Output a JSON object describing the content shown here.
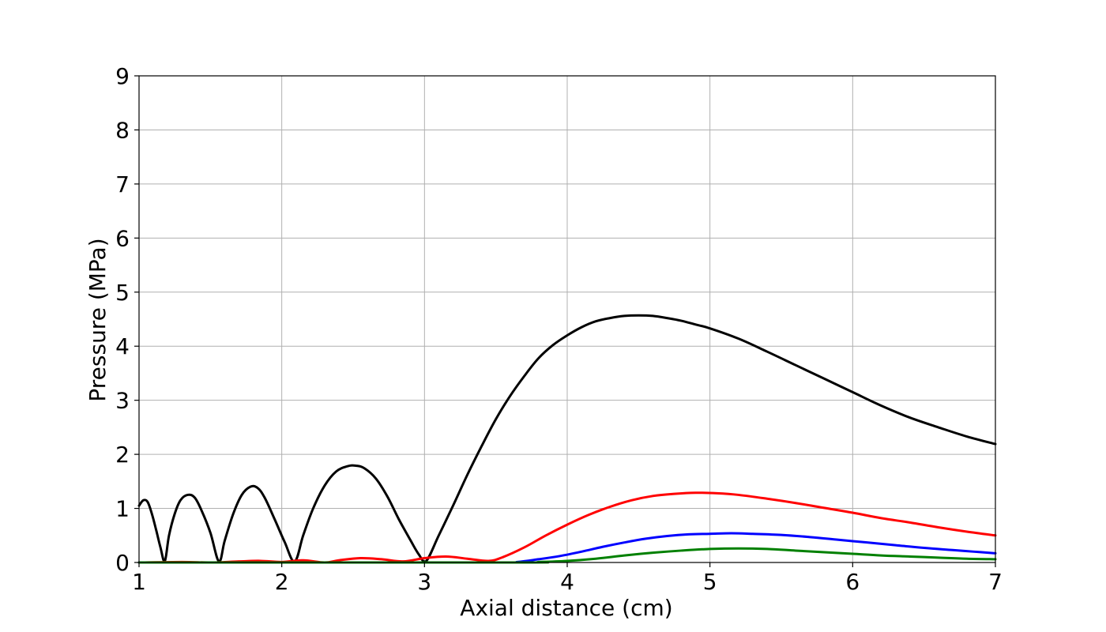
{
  "chart_data": {
    "type": "line",
    "title": "",
    "xlabel": "Axial distance (cm)",
    "ylabel": "Pressure (MPa)",
    "xlim": [
      1,
      7
    ],
    "ylim": [
      0,
      9
    ],
    "xticks": [
      "1",
      "2",
      "3",
      "4",
      "5",
      "6",
      "7"
    ],
    "yticks": [
      "0",
      "1",
      "2",
      "3",
      "4",
      "5",
      "6",
      "7",
      "8",
      "9"
    ],
    "grid": true,
    "legend": "none",
    "series": [
      {
        "color": "#000000",
        "points": [
          [
            1.0,
            1.05
          ],
          [
            1.03,
            1.15
          ],
          [
            1.06,
            1.12
          ],
          [
            1.09,
            0.9
          ],
          [
            1.12,
            0.6
          ],
          [
            1.15,
            0.28
          ],
          [
            1.18,
            0.02
          ],
          [
            1.21,
            0.5
          ],
          [
            1.25,
            0.9
          ],
          [
            1.29,
            1.15
          ],
          [
            1.34,
            1.25
          ],
          [
            1.39,
            1.2
          ],
          [
            1.44,
            0.95
          ],
          [
            1.5,
            0.55
          ],
          [
            1.56,
            0.02
          ],
          [
            1.6,
            0.4
          ],
          [
            1.66,
            0.9
          ],
          [
            1.72,
            1.25
          ],
          [
            1.78,
            1.4
          ],
          [
            1.83,
            1.38
          ],
          [
            1.88,
            1.2
          ],
          [
            1.95,
            0.8
          ],
          [
            2.02,
            0.38
          ],
          [
            2.09,
            0.02
          ],
          [
            2.15,
            0.5
          ],
          [
            2.22,
            1.0
          ],
          [
            2.3,
            1.42
          ],
          [
            2.38,
            1.68
          ],
          [
            2.46,
            1.78
          ],
          [
            2.52,
            1.79
          ],
          [
            2.58,
            1.74
          ],
          [
            2.66,
            1.55
          ],
          [
            2.74,
            1.22
          ],
          [
            2.82,
            0.8
          ],
          [
            2.9,
            0.42
          ],
          [
            2.96,
            0.15
          ],
          [
            3.01,
            0.02
          ],
          [
            3.1,
            0.5
          ],
          [
            3.2,
            1.05
          ],
          [
            3.3,
            1.62
          ],
          [
            3.4,
            2.15
          ],
          [
            3.5,
            2.65
          ],
          [
            3.6,
            3.08
          ],
          [
            3.7,
            3.45
          ],
          [
            3.8,
            3.78
          ],
          [
            3.9,
            4.02
          ],
          [
            4.0,
            4.2
          ],
          [
            4.1,
            4.35
          ],
          [
            4.2,
            4.46
          ],
          [
            4.3,
            4.52
          ],
          [
            4.4,
            4.56
          ],
          [
            4.5,
            4.57
          ],
          [
            4.6,
            4.56
          ],
          [
            4.7,
            4.52
          ],
          [
            4.8,
            4.47
          ],
          [
            4.9,
            4.4
          ],
          [
            5.0,
            4.33
          ],
          [
            5.2,
            4.14
          ],
          [
            5.4,
            3.9
          ],
          [
            5.6,
            3.65
          ],
          [
            5.8,
            3.4
          ],
          [
            6.0,
            3.15
          ],
          [
            6.2,
            2.9
          ],
          [
            6.4,
            2.68
          ],
          [
            6.6,
            2.5
          ],
          [
            6.8,
            2.33
          ],
          [
            7.0,
            2.19
          ]
        ]
      },
      {
        "color": "#ff0000",
        "points": [
          [
            1.0,
            0.0
          ],
          [
            1.3,
            0.01
          ],
          [
            1.5,
            0.0
          ],
          [
            1.7,
            0.02
          ],
          [
            1.85,
            0.03
          ],
          [
            2.0,
            0.01
          ],
          [
            2.15,
            0.04
          ],
          [
            2.3,
            0.0
          ],
          [
            2.4,
            0.04
          ],
          [
            2.55,
            0.08
          ],
          [
            2.7,
            0.06
          ],
          [
            2.85,
            0.02
          ],
          [
            3.0,
            0.08
          ],
          [
            3.15,
            0.11
          ],
          [
            3.3,
            0.07
          ],
          [
            3.45,
            0.03
          ],
          [
            3.55,
            0.1
          ],
          [
            3.7,
            0.28
          ],
          [
            3.85,
            0.5
          ],
          [
            4.0,
            0.7
          ],
          [
            4.15,
            0.88
          ],
          [
            4.3,
            1.03
          ],
          [
            4.45,
            1.15
          ],
          [
            4.6,
            1.23
          ],
          [
            4.75,
            1.27
          ],
          [
            4.9,
            1.29
          ],
          [
            5.05,
            1.28
          ],
          [
            5.2,
            1.25
          ],
          [
            5.4,
            1.18
          ],
          [
            5.6,
            1.1
          ],
          [
            5.8,
            1.01
          ],
          [
            6.0,
            0.92
          ],
          [
            6.2,
            0.82
          ],
          [
            6.4,
            0.74
          ],
          [
            6.6,
            0.65
          ],
          [
            6.8,
            0.57
          ],
          [
            7.0,
            0.5
          ]
        ]
      },
      {
        "color": "#0000ff",
        "points": [
          [
            1.0,
            0.0
          ],
          [
            3.5,
            0.0
          ],
          [
            3.65,
            0.01
          ],
          [
            3.8,
            0.06
          ],
          [
            3.95,
            0.12
          ],
          [
            4.1,
            0.2
          ],
          [
            4.25,
            0.29
          ],
          [
            4.4,
            0.37
          ],
          [
            4.55,
            0.44
          ],
          [
            4.7,
            0.49
          ],
          [
            4.85,
            0.52
          ],
          [
            5.0,
            0.53
          ],
          [
            5.15,
            0.54
          ],
          [
            5.3,
            0.53
          ],
          [
            5.5,
            0.51
          ],
          [
            5.7,
            0.47
          ],
          [
            5.9,
            0.42
          ],
          [
            6.1,
            0.37
          ],
          [
            6.3,
            0.32
          ],
          [
            6.5,
            0.27
          ],
          [
            6.7,
            0.23
          ],
          [
            6.85,
            0.2
          ],
          [
            7.0,
            0.17
          ]
        ]
      },
      {
        "color": "#008000",
        "points": [
          [
            1.0,
            0.0
          ],
          [
            3.6,
            0.0
          ],
          [
            3.8,
            0.01
          ],
          [
            4.0,
            0.03
          ],
          [
            4.2,
            0.07
          ],
          [
            4.4,
            0.13
          ],
          [
            4.6,
            0.18
          ],
          [
            4.8,
            0.22
          ],
          [
            5.0,
            0.25
          ],
          [
            5.2,
            0.26
          ],
          [
            5.4,
            0.25
          ],
          [
            5.6,
            0.22
          ],
          [
            5.8,
            0.19
          ],
          [
            6.0,
            0.16
          ],
          [
            6.2,
            0.13
          ],
          [
            6.4,
            0.11
          ],
          [
            6.6,
            0.09
          ],
          [
            6.8,
            0.07
          ],
          [
            7.0,
            0.06
          ]
        ]
      }
    ]
  }
}
